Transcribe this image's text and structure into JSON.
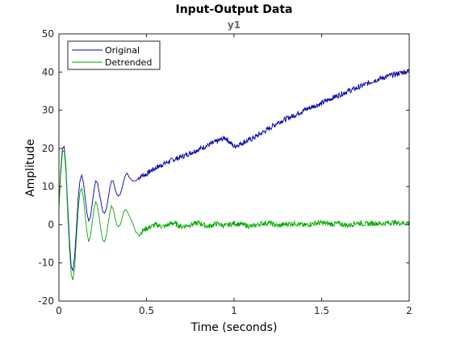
{
  "chart_data": {
    "type": "line",
    "title": "Input-Output Data",
    "subtitle": "y1",
    "xlabel": "Time (seconds)",
    "ylabel": "Amplitude",
    "xlim": [
      0,
      2
    ],
    "ylim": [
      -20,
      50
    ],
    "xticks": [
      0,
      0.5,
      1,
      1.5,
      2
    ],
    "xtick_labels": [
      "0",
      "0.5",
      "1",
      "1.5",
      "2"
    ],
    "yticks": [
      -20,
      -10,
      0,
      10,
      20,
      30,
      40,
      50
    ],
    "ytick_labels": [
      "-20",
      "-10",
      "0",
      "10",
      "20",
      "30",
      "40",
      "50"
    ],
    "grid": false,
    "legend_position": "top-left",
    "series": [
      {
        "name": "Original",
        "color": "#0000aa",
        "x": [
          0,
          0.01,
          0.02,
          0.03,
          0.04,
          0.05,
          0.06,
          0.07,
          0.08,
          0.09,
          0.1,
          0.11,
          0.12,
          0.13,
          0.14,
          0.15,
          0.16,
          0.17,
          0.18,
          0.19,
          0.2,
          0.21,
          0.22,
          0.23,
          0.24,
          0.25,
          0.26,
          0.27,
          0.28,
          0.29,
          0.3,
          0.31,
          0.32,
          0.33,
          0.34,
          0.35,
          0.36,
          0.37,
          0.38,
          0.39,
          0.4,
          0.42,
          0.44,
          0.46,
          0.48,
          0.5,
          0.52,
          0.55,
          0.6,
          0.65,
          0.7,
          0.75,
          0.8,
          0.85,
          0.9,
          0.95,
          1.0,
          1.05,
          1.1,
          1.15,
          1.2,
          1.25,
          1.3,
          1.35,
          1.4,
          1.45,
          1.5,
          1.55,
          1.6,
          1.65,
          1.7,
          1.75,
          1.8,
          1.85,
          1.9,
          1.95,
          2.0
        ],
        "y": [
          5,
          14,
          20,
          20.5,
          15,
          5,
          -4,
          -11,
          -12,
          -8,
          -1,
          7,
          11.5,
          13,
          11,
          7,
          3,
          1,
          2,
          5.5,
          9,
          11.5,
          11,
          8.5,
          6,
          3.5,
          3,
          4,
          6.5,
          9.5,
          11.5,
          11.5,
          9.5,
          8,
          7.5,
          8,
          9.5,
          11.5,
          13,
          13.5,
          12.5,
          11.5,
          11.5,
          12.5,
          13,
          13.2,
          14,
          14.8,
          16,
          17,
          17.8,
          18.8,
          19.8,
          20.8,
          21.8,
          22.8,
          20.5,
          21.5,
          22.5,
          23.8,
          25.2,
          26.8,
          27.8,
          28.8,
          30,
          31,
          31.8,
          33,
          34,
          35,
          35.8,
          36.8,
          37.8,
          38.5,
          39.2,
          39.8,
          40.3
        ]
      },
      {
        "name": "Detrended",
        "color": "#00aa00",
        "x": [
          0,
          0.01,
          0.02,
          0.03,
          0.04,
          0.05,
          0.06,
          0.07,
          0.08,
          0.09,
          0.1,
          0.11,
          0.12,
          0.13,
          0.14,
          0.15,
          0.16,
          0.17,
          0.18,
          0.19,
          0.2,
          0.21,
          0.22,
          0.23,
          0.24,
          0.25,
          0.26,
          0.27,
          0.28,
          0.29,
          0.3,
          0.31,
          0.32,
          0.33,
          0.34,
          0.35,
          0.36,
          0.37,
          0.38,
          0.39,
          0.4,
          0.42,
          0.44,
          0.46,
          0.48,
          0.5,
          0.55,
          0.6,
          0.65,
          0.7,
          0.75,
          0.8,
          0.85,
          0.9,
          0.95,
          1.0,
          1.05,
          1.1,
          1.15,
          1.2,
          1.25,
          1.3,
          1.35,
          1.4,
          1.45,
          1.5,
          1.55,
          1.6,
          1.65,
          1.7,
          1.75,
          1.8,
          1.85,
          1.9,
          1.95,
          2.0
        ],
        "y": [
          4,
          13,
          19,
          19.5,
          14,
          3,
          -6,
          -13,
          -14.5,
          -11,
          -3.5,
          4,
          8.5,
          9.5,
          7,
          2.5,
          -2,
          -4.5,
          -3,
          0.5,
          4,
          6,
          5,
          2,
          -1.5,
          -4,
          -4.5,
          -3,
          0,
          3,
          5,
          4,
          2,
          0,
          -0.5,
          0,
          1.5,
          3.5,
          4,
          3.5,
          2.5,
          0.5,
          -2,
          -2.5,
          -1.5,
          -1,
          0,
          -0.5,
          0.5,
          -0.5,
          0,
          0.5,
          -0.5,
          0.3,
          -0.3,
          0.4,
          0,
          -0.5,
          0.3,
          0.5,
          -0.3,
          0.2,
          0.4,
          -0.2,
          0.3,
          0.5,
          0.2,
          0.3,
          -0.2,
          0.5,
          0.2,
          0.4,
          0.3,
          0.6,
          0.4,
          0.5
        ]
      }
    ]
  }
}
